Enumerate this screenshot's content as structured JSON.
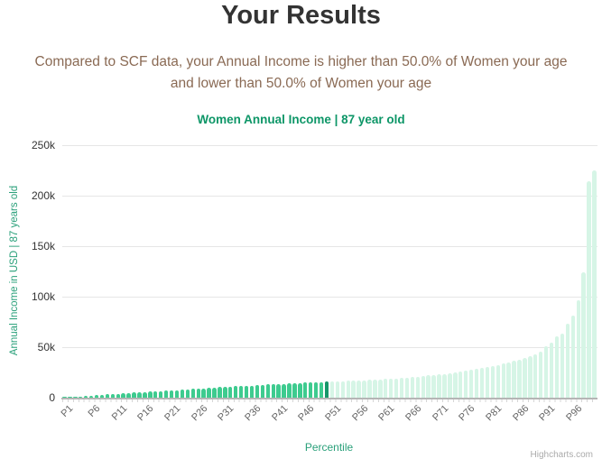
{
  "header": {
    "title": "Your Results",
    "subtitle_line1": "Compared to SCF data, your Annual Income is higher than 50.0% of Women your age",
    "subtitle_line2": "and lower than 50.0% of Women your age"
  },
  "chart_data": {
    "type": "bar",
    "title": "Women Annual Income | 87 year old",
    "xlabel": "Percentile",
    "ylabel": "Annual Income in USD | 87 years old",
    "ylim": [
      0,
      250000
    ],
    "y_tick_values": [
      0,
      50000,
      100000,
      150000,
      200000,
      250000
    ],
    "y_tick_labels": [
      "0",
      "50k",
      "100k",
      "150k",
      "200k",
      "250k"
    ],
    "x_label_step": 5,
    "grid": true,
    "legend": false,
    "highlight_index": 49,
    "highlight_category": "P50",
    "categories": [
      "P1",
      "P2",
      "P3",
      "P4",
      "P5",
      "P6",
      "P7",
      "P8",
      "P9",
      "P10",
      "P11",
      "P12",
      "P13",
      "P14",
      "P15",
      "P16",
      "P17",
      "P18",
      "P19",
      "P20",
      "P21",
      "P22",
      "P23",
      "P24",
      "P25",
      "P26",
      "P27",
      "P28",
      "P29",
      "P30",
      "P31",
      "P32",
      "P33",
      "P34",
      "P35",
      "P36",
      "P37",
      "P38",
      "P39",
      "P40",
      "P41",
      "P42",
      "P43",
      "P44",
      "P45",
      "P46",
      "P47",
      "P48",
      "P49",
      "P50",
      "P51",
      "P52",
      "P53",
      "P54",
      "P55",
      "P56",
      "P57",
      "P58",
      "P59",
      "P60",
      "P61",
      "P62",
      "P63",
      "P64",
      "P65",
      "P66",
      "P67",
      "P68",
      "P69",
      "P70",
      "P71",
      "P72",
      "P73",
      "P74",
      "P75",
      "P76",
      "P77",
      "P78",
      "P79",
      "P80",
      "P81",
      "P82",
      "P83",
      "P84",
      "P85",
      "P86",
      "P87",
      "P88",
      "P89",
      "P90",
      "P91",
      "P92",
      "P93",
      "P94",
      "P95",
      "P96",
      "P97",
      "P98",
      "P99",
      "P100"
    ],
    "values": [
      300,
      600,
      900,
      1200,
      1500,
      2000,
      2400,
      2800,
      3200,
      3600,
      4000,
      4300,
      4600,
      5000,
      5300,
      5600,
      6000,
      6300,
      6600,
      7000,
      7300,
      7600,
      8000,
      8300,
      8600,
      9000,
      9300,
      9600,
      10000,
      10300,
      10600,
      11000,
      11200,
      11500,
      11800,
      12000,
      12300,
      12600,
      13000,
      13200,
      13500,
      13800,
      14000,
      14200,
      14500,
      14800,
      15000,
      15200,
      15500,
      15800,
      16000,
      16200,
      16400,
      16600,
      16900,
      17100,
      17400,
      17600,
      17900,
      18200,
      18500,
      18800,
      19200,
      19600,
      20000,
      20400,
      20900,
      21400,
      21900,
      22400,
      23000,
      23600,
      24300,
      25000,
      25800,
      26600,
      27400,
      28300,
      29200,
      30200,
      31200,
      32300,
      33500,
      34800,
      36200,
      37600,
      39200,
      41000,
      43000,
      45500,
      51000,
      54000,
      61000,
      63000,
      73000,
      81000,
      96000,
      124000,
      214000,
      225000
    ],
    "credits": "Highcharts.com"
  },
  "colors": {
    "bar_below": "#3ecb8f",
    "bar_highlight": "#17976a",
    "bar_above": "#d6f5e6",
    "title_text": "#333333",
    "subtitle_text": "#8a6a54",
    "chart_title_text": "#0d9667",
    "axis_title_text": "#2aa07a",
    "y_tick_text": "#333333",
    "x_tick_text": "#666666",
    "gridline": "#e6e6e6",
    "axis_line": "#b5b5b5",
    "credits_text": "#aaaaaa"
  }
}
